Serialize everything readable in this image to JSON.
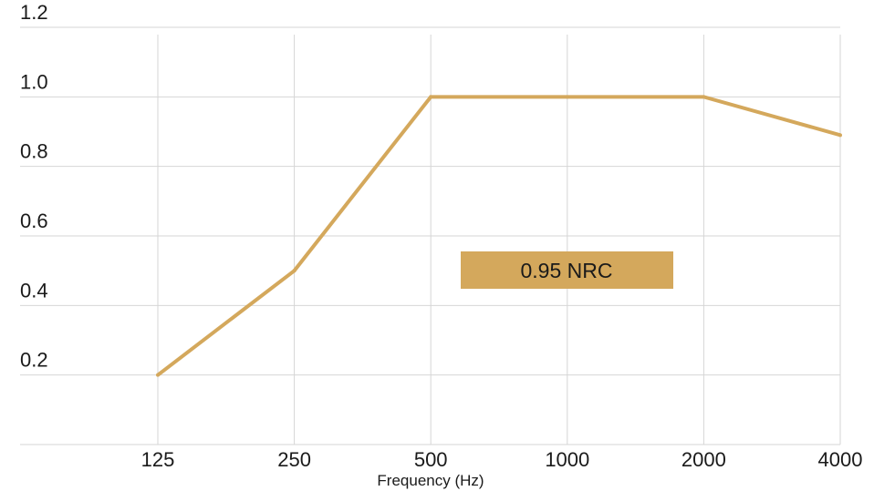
{
  "chart_data": {
    "type": "line",
    "xlabel": "Frequency (Hz)",
    "ylabel": "",
    "title": "",
    "categories": [
      "125",
      "250",
      "500",
      "1000",
      "2000",
      "4000"
    ],
    "series": [
      {
        "values": [
          0.2,
          0.5,
          1.0,
          1.0,
          1.0,
          0.89
        ],
        "color": "#d4a85c"
      }
    ],
    "y_ticks": [
      "0.2",
      "0.4",
      "0.6",
      "0.8",
      "1.0",
      "1.2"
    ],
    "ylim": [
      0,
      1.2
    ],
    "grid": true,
    "annotation": {
      "text": "0.95 NRC",
      "color": "#d4a85c"
    }
  }
}
